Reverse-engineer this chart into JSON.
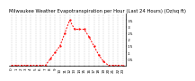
{
  "title": "Milwaukee Weather Evapotranspiration per Hour (Last 24 Hours) (Oz/sq ft)",
  "hours": [
    0,
    1,
    2,
    3,
    4,
    5,
    6,
    7,
    8,
    9,
    10,
    11,
    12,
    13,
    14,
    15,
    16,
    17,
    18,
    19,
    20,
    21,
    22,
    23
  ],
  "values": [
    0,
    0,
    0,
    0,
    0,
    0,
    0,
    0.0,
    0.05,
    0.1,
    0.15,
    0.25,
    0.35,
    0.28,
    0.28,
    0.28,
    0.22,
    0.15,
    0.08,
    0.03,
    0,
    0,
    0,
    0
  ],
  "line_color": "#ff0000",
  "bg_color": "#ffffff",
  "grid_color": "#aaaaaa",
  "ylim": [
    0,
    0.4
  ],
  "ytick_vals": [
    0.05,
    0.1,
    0.15,
    0.2,
    0.25,
    0.3,
    0.35
  ],
  "ytick_labels": [
    ".05",
    ".1",
    ".15",
    ".2",
    ".25",
    ".3",
    ".35"
  ],
  "xtick_labels": [
    "0",
    "1",
    "2",
    "3",
    "4",
    "5",
    "6",
    "7",
    "8",
    "9",
    "10",
    "11",
    "12",
    "13",
    "14",
    "15",
    "16",
    "17",
    "18",
    "19",
    "20",
    "21",
    "22",
    "23"
  ],
  "title_fontsize": 3.8,
  "tick_fontsize": 3.0,
  "linewidth": 0.7,
  "markersize": 1.2
}
